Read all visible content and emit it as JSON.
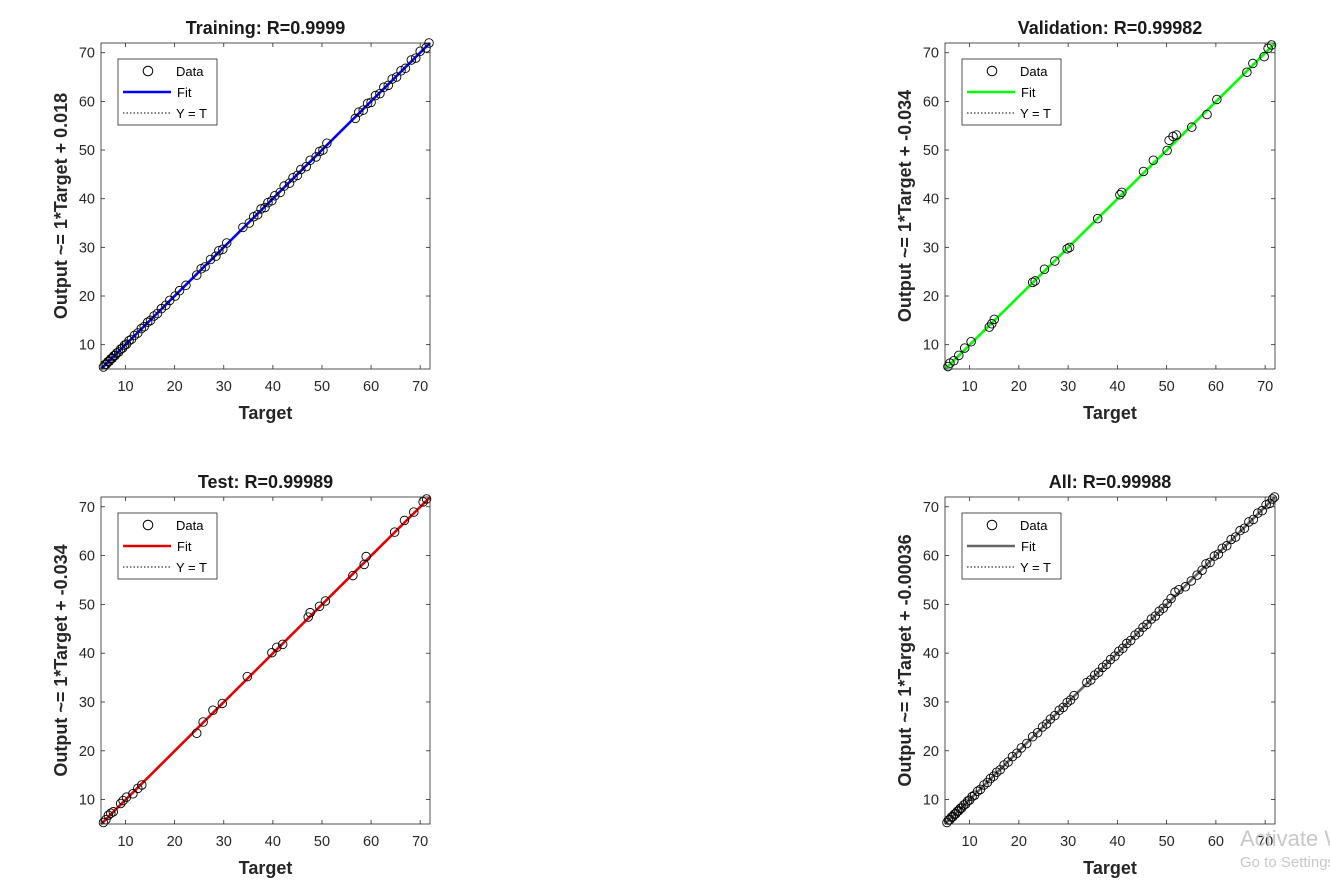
{
  "chart_data": [
    {
      "type": "scatter",
      "title": "Training: R=0.9999",
      "xlabel": "Target",
      "ylabel": "Output ~= 1*Target + 0.018",
      "xlim": [
        5,
        72
      ],
      "ylim": [
        5,
        72
      ],
      "xticks": [
        10,
        20,
        30,
        40,
        50,
        60,
        70
      ],
      "yticks": [
        10,
        20,
        30,
        40,
        50,
        60,
        70
      ],
      "fit": {
        "slope": 1,
        "intercept": 0.018
      },
      "legend": [
        "Data",
        "Fit",
        "Y = T"
      ],
      "legend_position": "top-left",
      "fit_color": "#0000ff",
      "x": [
        5.5,
        5.8,
        6.1,
        6.4,
        6.7,
        7.0,
        7.3,
        7.6,
        7.9,
        8.2,
        8.6,
        9.0,
        9.4,
        9.8,
        10.2,
        10.7,
        11.2,
        11.8,
        12.5,
        13.2,
        13.8,
        14.5,
        15.1,
        15.8,
        16.5,
        17.3,
        18.2,
        19.0,
        20.1,
        21.0,
        22.3,
        24.5,
        25.4,
        26.2,
        27.3,
        28.4,
        29.0,
        29.8,
        30.6,
        33.9,
        35.2,
        36.1,
        36.9,
        37.6,
        38.4,
        39.0,
        39.8,
        40.4,
        41.5,
        42.3,
        43.4,
        44.1,
        45.0,
        45.7,
        46.8,
        47.6,
        48.8,
        49.5,
        50.2,
        51.0,
        56.8,
        57.5,
        58.4,
        59.3,
        60.0,
        60.9,
        61.8,
        62.6,
        63.5,
        64.3,
        65.2,
        66.1,
        67.0,
        68.2,
        69.1,
        70.0,
        71.2,
        71.8
      ],
      "y": [
        5.4,
        5.9,
        6.0,
        6.5,
        6.6,
        7.1,
        7.2,
        7.7,
        7.8,
        8.3,
        8.5,
        9.1,
        9.3,
        9.9,
        10.1,
        10.8,
        11.1,
        11.9,
        12.4,
        13.3,
        13.7,
        14.6,
        15.0,
        15.9,
        16.4,
        17.4,
        18.1,
        19.1,
        20.0,
        21.1,
        22.2,
        24.3,
        25.6,
        26.0,
        27.5,
        28.2,
        29.3,
        29.6,
        30.9,
        34.1,
        35.0,
        36.3,
        36.7,
        37.9,
        38.2,
        39.2,
        39.6,
        40.6,
        41.3,
        42.6,
        43.2,
        44.3,
        44.8,
        46.0,
        46.6,
        47.9,
        48.6,
        49.7,
        50.0,
        51.4,
        56.5,
        57.8,
        58.2,
        59.6,
        59.8,
        61.2,
        61.6,
        62.9,
        63.3,
        64.6,
        65.0,
        66.3,
        66.8,
        68.5,
        68.9,
        70.3,
        71.0,
        72.0
      ]
    },
    {
      "type": "scatter",
      "title": "Validation: R=0.99982",
      "xlabel": "Target",
      "ylabel": "Output ~= 1*Target + -0.034",
      "xlim": [
        5,
        72
      ],
      "ylim": [
        5,
        72
      ],
      "xticks": [
        10,
        20,
        30,
        40,
        50,
        60,
        70
      ],
      "yticks": [
        10,
        20,
        30,
        40,
        50,
        60,
        70
      ],
      "fit": {
        "slope": 1,
        "intercept": -0.034
      },
      "legend": [
        "Data",
        "Fit",
        "Y = T"
      ],
      "legend_position": "top-left",
      "fit_color": "#00ff00",
      "x": [
        5.6,
        6.0,
        6.8,
        7.8,
        9.0,
        10.3,
        14.0,
        14.5,
        15.0,
        22.8,
        23.3,
        25.2,
        27.3,
        29.8,
        30.3,
        36.0,
        40.5,
        40.9,
        45.3,
        47.3,
        50.1,
        50.5,
        51.3,
        52.0,
        55.1,
        58.2,
        60.2,
        66.3,
        67.5,
        69.8,
        70.6,
        71.3
      ],
      "y": [
        5.5,
        6.2,
        6.7,
        7.8,
        9.3,
        10.6,
        13.6,
        14.3,
        15.2,
        22.8,
        23.1,
        25.5,
        27.2,
        29.7,
        30.0,
        35.9,
        40.8,
        41.3,
        45.6,
        47.9,
        49.9,
        52.0,
        52.8,
        53.1,
        54.7,
        57.3,
        60.4,
        66.0,
        67.8,
        69.2,
        70.9,
        71.6
      ]
    },
    {
      "type": "scatter",
      "title": "Test: R=0.99989",
      "xlabel": "Target",
      "ylabel": "Output ~= 1*Target + -0.034",
      "xlim": [
        5,
        72
      ],
      "ylim": [
        5,
        72
      ],
      "xticks": [
        10,
        20,
        30,
        40,
        50,
        60,
        70
      ],
      "yticks": [
        10,
        20,
        30,
        40,
        50,
        60,
        70
      ],
      "fit": {
        "slope": 1,
        "intercept": -0.034
      },
      "legend": [
        "Data",
        "Fit",
        "Y = T"
      ],
      "legend_position": "top-left",
      "fit_color": "#e60000",
      "x": [
        5.5,
        6.0,
        6.5,
        7.0,
        7.5,
        9.0,
        9.5,
        10.2,
        11.5,
        12.5,
        13.3,
        24.5,
        25.8,
        27.8,
        29.7,
        34.8,
        39.8,
        40.8,
        42.0,
        47.2,
        47.6,
        49.5,
        50.7,
        56.3,
        58.6,
        59.0,
        64.8,
        66.8,
        68.7,
        70.6,
        71.3
      ],
      "y": [
        5.3,
        5.9,
        6.8,
        7.2,
        7.5,
        9.2,
        9.8,
        10.5,
        11.2,
        12.3,
        13.0,
        23.6,
        25.9,
        28.3,
        29.7,
        35.2,
        40.1,
        41.2,
        41.8,
        47.4,
        48.3,
        49.6,
        50.7,
        55.9,
        58.2,
        59.8,
        64.8,
        67.2,
        68.9,
        71.0,
        71.6
      ]
    },
    {
      "type": "scatter",
      "title": "All: R=0.99988",
      "xlabel": "Target",
      "ylabel": "Output ~= 1*Target + -0.00036",
      "xlim": [
        5,
        72
      ],
      "ylim": [
        5,
        72
      ],
      "xticks": [
        10,
        20,
        30,
        40,
        50,
        60,
        70
      ],
      "yticks": [
        10,
        20,
        30,
        40,
        50,
        60,
        70
      ],
      "fit": {
        "slope": 1,
        "intercept": -0.00036
      },
      "legend": [
        "Data",
        "Fit",
        "Y = T"
      ],
      "legend_position": "top-left",
      "fit_color": "#666666",
      "x": [
        5.4,
        5.7,
        6.0,
        6.3,
        6.6,
        6.9,
        7.2,
        7.5,
        7.8,
        8.1,
        8.4,
        8.8,
        9.2,
        9.6,
        10.0,
        10.5,
        11.0,
        11.6,
        12.2,
        12.9,
        13.6,
        14.2,
        14.9,
        15.5,
        16.2,
        17.0,
        17.8,
        18.7,
        19.6,
        20.5,
        21.6,
        22.8,
        23.8,
        24.8,
        25.6,
        26.4,
        27.3,
        28.2,
        29.0,
        29.8,
        30.5,
        31.2,
        33.8,
        34.6,
        35.4,
        36.2,
        37.0,
        37.8,
        38.6,
        39.5,
        40.3,
        41.1,
        41.9,
        42.7,
        43.6,
        44.4,
        45.2,
        46.0,
        46.9,
        47.7,
        48.5,
        49.3,
        50.1,
        50.9,
        51.7,
        52.5,
        53.8,
        55.0,
        56.2,
        57.2,
        58.0,
        58.8,
        59.7,
        60.5,
        61.3,
        62.2,
        63.1,
        64.0,
        64.9,
        65.8,
        66.7,
        67.6,
        68.5,
        69.4,
        70.2,
        70.9,
        71.5,
        71.9
      ],
      "y": [
        5.3,
        5.8,
        5.9,
        6.4,
        6.5,
        7.0,
        7.1,
        7.6,
        7.7,
        8.2,
        8.3,
        8.9,
        9.1,
        9.7,
        9.9,
        10.6,
        10.9,
        11.7,
        12.1,
        13.0,
        13.5,
        14.3,
        14.8,
        15.6,
        16.1,
        17.1,
        17.7,
        18.8,
        19.5,
        20.6,
        21.5,
        22.9,
        23.7,
        24.9,
        25.5,
        26.5,
        27.2,
        28.3,
        28.9,
        29.9,
        30.4,
        31.3,
        34.0,
        34.5,
        35.5,
        36.1,
        37.1,
        37.7,
        38.7,
        39.4,
        40.4,
        41.0,
        42.0,
        42.6,
        43.7,
        44.3,
        45.3,
        45.9,
        47.0,
        47.6,
        48.6,
        49.2,
        50.2,
        51.2,
        52.5,
        53.0,
        53.6,
        54.8,
        56.0,
        57.0,
        58.3,
        58.6,
        59.9,
        60.3,
        61.5,
        62.0,
        63.3,
        63.8,
        65.1,
        65.6,
        66.9,
        67.4,
        68.7,
        69.2,
        70.4,
        70.7,
        71.6,
        72.0
      ]
    }
  ],
  "watermark": {
    "title": "Activate Windows",
    "subtitle": "Go to Settings to activate Windows."
  }
}
